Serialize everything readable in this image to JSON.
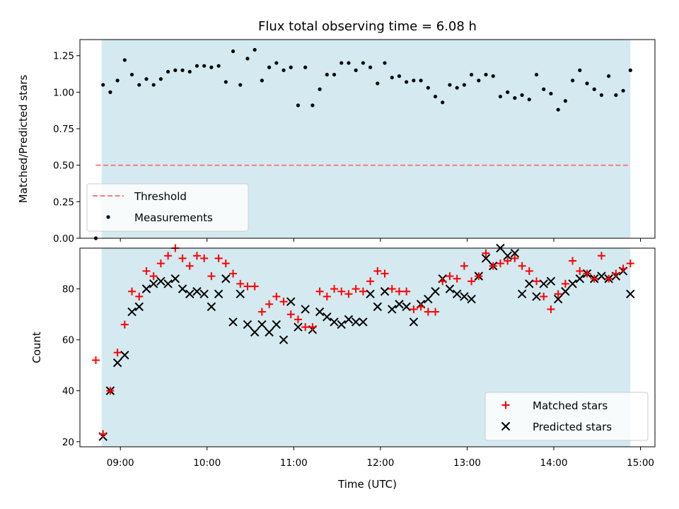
{
  "chart_data": [
    {
      "type": "scatter",
      "title": "Flux total observing time = 6.08 h",
      "xlabel": "",
      "ylabel": "Matched/Predicted stars",
      "ylim": [
        0.0,
        1.36
      ],
      "yticks": [
        0.0,
        0.25,
        0.5,
        0.75,
        1.0,
        1.25
      ],
      "ytick_labels": [
        "0.00",
        "0.25",
        "0.50",
        "0.75",
        "1.00",
        "1.25"
      ],
      "xlim": [
        "08:32",
        "15:10"
      ],
      "xticks": [
        "09:00",
        "10:00",
        "11:00",
        "12:00",
        "13:00",
        "14:00",
        "15:00"
      ],
      "grid": false,
      "shaded_span": {
        "from": "08:47",
        "to": "14:53",
        "color": "#d4eaf0"
      },
      "threshold": {
        "name": "Threshold",
        "value": 0.5,
        "from": "08:43",
        "to": "14:53",
        "color": "#f08080"
      },
      "legend": {
        "placement": "lower-left",
        "entries": [
          "Threshold",
          "Measurements"
        ]
      },
      "series": [
        {
          "name": "Measurements",
          "color": "#000000",
          "marker": "dot",
          "x": [
            "08:43",
            "08:48",
            "08:53",
            "08:58",
            "09:03",
            "09:08",
            "09:13",
            "09:18",
            "09:23",
            "09:28",
            "09:33",
            "09:38",
            "09:43",
            "09:48",
            "09:53",
            "09:58",
            "10:03",
            "10:08",
            "10:13",
            "10:18",
            "10:23",
            "10:28",
            "10:33",
            "10:38",
            "10:43",
            "10:48",
            "10:53",
            "10:58",
            "11:03",
            "11:08",
            "11:13",
            "11:18",
            "11:23",
            "11:28",
            "11:33",
            "11:38",
            "11:43",
            "11:48",
            "11:53",
            "11:58",
            "12:03",
            "12:08",
            "12:13",
            "12:18",
            "12:23",
            "12:28",
            "12:33",
            "12:38",
            "12:43",
            "12:48",
            "12:53",
            "12:58",
            "13:03",
            "13:08",
            "13:13",
            "13:18",
            "13:23",
            "13:28",
            "13:33",
            "13:38",
            "13:43",
            "13:48",
            "13:53",
            "13:58",
            "14:03",
            "14:08",
            "14:13",
            "14:18",
            "14:23",
            "14:28",
            "14:33",
            "14:38",
            "14:43",
            "14:48",
            "14:53"
          ],
          "y": [
            0.0,
            1.05,
            1.0,
            1.08,
            1.22,
            1.12,
            1.05,
            1.09,
            1.05,
            1.09,
            1.14,
            1.15,
            1.15,
            1.14,
            1.18,
            1.18,
            1.17,
            1.18,
            1.07,
            1.28,
            1.05,
            1.23,
            1.29,
            1.08,
            1.17,
            1.2,
            1.15,
            1.17,
            0.91,
            1.17,
            0.91,
            1.02,
            1.12,
            1.12,
            1.2,
            1.2,
            1.15,
            1.2,
            1.17,
            1.06,
            1.2,
            1.1,
            1.11,
            1.07,
            1.08,
            1.08,
            1.03,
            0.97,
            0.93,
            1.05,
            1.03,
            1.05,
            1.12,
            1.08,
            1.12,
            1.11,
            0.97,
            1.0,
            0.96,
            0.98,
            0.95,
            1.12,
            1.02,
            0.99,
            0.88,
            0.94,
            1.08,
            1.15,
            1.06,
            1.02,
            0.98,
            1.11,
            0.98,
            1.01,
            1.15
          ]
        }
      ]
    },
    {
      "type": "scatter",
      "title": "",
      "xlabel": "Time (UTC)",
      "ylabel": "Count",
      "ylim": [
        18,
        96
      ],
      "yticks": [
        20,
        40,
        60,
        80
      ],
      "ytick_labels": [
        "20",
        "40",
        "60",
        "80"
      ],
      "xlim": [
        "08:32",
        "15:10"
      ],
      "xticks": [
        "09:00",
        "10:00",
        "11:00",
        "12:00",
        "13:00",
        "14:00",
        "15:00"
      ],
      "xtick_labels": [
        "09:00",
        "10:00",
        "11:00",
        "12:00",
        "13:00",
        "14:00",
        "15:00"
      ],
      "grid": false,
      "shaded_span": {
        "from": "08:47",
        "to": "14:53",
        "color": "#d4eaf0"
      },
      "legend": {
        "placement": "lower-right",
        "entries": [
          "Matched stars",
          "Predicted stars"
        ]
      },
      "series": [
        {
          "name": "Matched stars",
          "color": "#ff0000",
          "marker": "plus",
          "x": [
            "08:43",
            "08:48",
            "08:53",
            "08:58",
            "09:03",
            "09:08",
            "09:13",
            "09:18",
            "09:23",
            "09:28",
            "09:33",
            "09:38",
            "09:43",
            "09:48",
            "09:53",
            "09:58",
            "10:03",
            "10:08",
            "10:13",
            "10:18",
            "10:23",
            "10:28",
            "10:33",
            "10:38",
            "10:43",
            "10:48",
            "10:53",
            "10:58",
            "11:03",
            "11:08",
            "11:13",
            "11:18",
            "11:23",
            "11:28",
            "11:33",
            "11:38",
            "11:43",
            "11:48",
            "11:53",
            "11:58",
            "12:03",
            "12:08",
            "12:13",
            "12:18",
            "12:23",
            "12:28",
            "12:33",
            "12:38",
            "12:43",
            "12:48",
            "12:53",
            "12:58",
            "13:03",
            "13:08",
            "13:13",
            "13:18",
            "13:23",
            "13:28",
            "13:33",
            "13:38",
            "13:43",
            "13:48",
            "13:53",
            "13:58",
            "14:03",
            "14:08",
            "14:13",
            "14:18",
            "14:23",
            "14:28",
            "14:33",
            "14:38",
            "14:43",
            "14:48",
            "14:53"
          ],
          "y": [
            52,
            23,
            40,
            55,
            66,
            79,
            77,
            87,
            85,
            90,
            93,
            96,
            92,
            89,
            93,
            92,
            85,
            92,
            90,
            86,
            82,
            81,
            81,
            71,
            74,
            77,
            75,
            70,
            68,
            65,
            65,
            79,
            77,
            80,
            79,
            78,
            80,
            79,
            83,
            87,
            86,
            80,
            79,
            79,
            72,
            73,
            71,
            71,
            83,
            85,
            84,
            89,
            83,
            85,
            94,
            89,
            90,
            91,
            92,
            89,
            87,
            83,
            77,
            72,
            78,
            82,
            91,
            87,
            86,
            84,
            93,
            84,
            86,
            88,
            90
          ]
        },
        {
          "name": "Predicted stars",
          "color": "#000000",
          "marker": "x",
          "x": [
            "08:48",
            "08:53",
            "08:58",
            "09:03",
            "09:08",
            "09:13",
            "09:18",
            "09:23",
            "09:28",
            "09:33",
            "09:38",
            "09:43",
            "09:48",
            "09:53",
            "09:58",
            "10:03",
            "10:08",
            "10:13",
            "10:18",
            "10:23",
            "10:28",
            "10:33",
            "10:38",
            "10:43",
            "10:48",
            "10:53",
            "10:58",
            "11:03",
            "11:08",
            "11:13",
            "11:18",
            "11:23",
            "11:28",
            "11:33",
            "11:38",
            "11:43",
            "11:48",
            "11:53",
            "11:58",
            "12:03",
            "12:08",
            "12:13",
            "12:18",
            "12:23",
            "12:28",
            "12:33",
            "12:38",
            "12:43",
            "12:48",
            "12:53",
            "12:58",
            "13:03",
            "13:08",
            "13:13",
            "13:18",
            "13:23",
            "13:28",
            "13:33",
            "13:38",
            "13:43",
            "13:48",
            "13:53",
            "13:58",
            "14:03",
            "14:08",
            "14:13",
            "14:18",
            "14:23",
            "14:28",
            "14:33",
            "14:38",
            "14:43",
            "14:48",
            "14:53"
          ],
          "y": [
            22,
            40,
            51,
            54,
            71,
            73,
            80,
            82,
            83,
            82,
            84,
            80,
            78,
            79,
            78,
            73,
            78,
            84,
            67,
            78,
            66,
            63,
            66,
            63,
            66,
            60,
            75,
            65,
            72,
            64,
            71,
            69,
            67,
            66,
            68,
            67,
            67,
            78,
            73,
            79,
            72,
            74,
            73,
            67,
            74,
            76,
            79,
            84,
            80,
            78,
            77,
            76,
            85,
            92,
            89,
            96,
            93,
            94,
            78,
            82,
            77,
            82,
            83,
            76,
            79,
            82,
            84,
            86,
            84,
            85,
            84,
            85,
            87,
            78
          ]
        }
      ]
    }
  ]
}
